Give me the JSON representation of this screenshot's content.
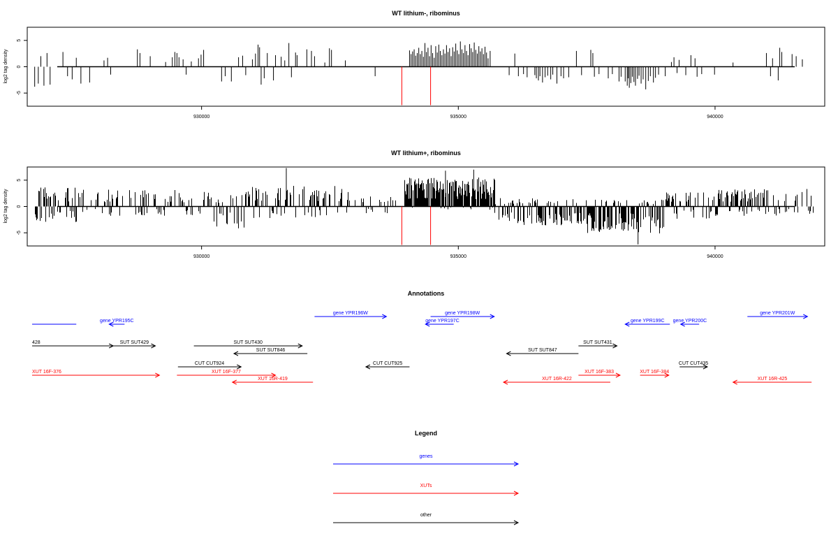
{
  "chart_data": [
    {
      "type": "bar",
      "title": "WT lithium-, ribominus",
      "ylabel": "log2 tag density",
      "xlabel": "",
      "xlim": [
        926700,
        942000
      ],
      "ylim": [
        -7.5,
        7.5
      ],
      "yticks": [
        "-5",
        "0",
        "5"
      ],
      "xticks": [
        "930000",
        "935000",
        "940000"
      ],
      "baseline": 0,
      "bars": [
        [
          926750,
          -3.8
        ],
        [
          926820,
          -3.2
        ],
        [
          926870,
          2.0
        ],
        [
          926930,
          -3.6
        ],
        [
          926990,
          2.6
        ],
        [
          927050,
          -3.4
        ],
        [
          927300,
          2.8
        ],
        [
          927390,
          -1.8
        ],
        [
          927480,
          -2.4
        ],
        [
          927560,
          1.7
        ],
        [
          927650,
          -3.2
        ],
        [
          927820,
          -3.0
        ],
        [
          928100,
          1.2
        ],
        [
          928170,
          1.7
        ],
        [
          928230,
          -1.5
        ],
        [
          928750,
          3.3
        ],
        [
          928800,
          2.6
        ],
        [
          929000,
          2.0
        ],
        [
          929300,
          0.9
        ],
        [
          929430,
          1.8
        ],
        [
          929480,
          2.8
        ],
        [
          929520,
          2.6
        ],
        [
          929560,
          1.8
        ],
        [
          929640,
          1.4
        ],
        [
          929700,
          -1.5
        ],
        [
          929800,
          1.0
        ],
        [
          929940,
          1.6
        ],
        [
          929990,
          2.3
        ],
        [
          930040,
          3.2
        ],
        [
          930390,
          -2.8
        ],
        [
          930460,
          -1.8
        ],
        [
          930580,
          -2.8
        ],
        [
          930720,
          1.8
        ],
        [
          930800,
          2.1
        ],
        [
          930860,
          -1.6
        ],
        [
          930990,
          1.4
        ],
        [
          931050,
          2.5
        ],
        [
          931100,
          4.2
        ],
        [
          931130,
          3.7
        ],
        [
          931160,
          -3.4
        ],
        [
          931220,
          -2.2
        ],
        [
          931280,
          2.6
        ],
        [
          931400,
          -2.6
        ],
        [
          931440,
          2.2
        ],
        [
          931550,
          1.9
        ],
        [
          931620,
          1.2
        ],
        [
          931700,
          4.5
        ],
        [
          931750,
          -2.0
        ],
        [
          931830,
          2.7
        ],
        [
          931860,
          2.2
        ],
        [
          932050,
          3.3
        ],
        [
          932140,
          3.0
        ],
        [
          932200,
          2.0
        ],
        [
          932400,
          0.8
        ],
        [
          932490,
          3.5
        ],
        [
          932530,
          3.2
        ],
        [
          932800,
          1.2
        ],
        [
          933380,
          -1.8
        ],
        [
          934050,
          3.1
        ],
        [
          934080,
          2.4
        ],
        [
          934110,
          2.9
        ],
        [
          934140,
          3.3
        ],
        [
          934170,
          2.1
        ],
        [
          934200,
          2.6
        ],
        [
          934230,
          3.6
        ],
        [
          934260,
          2.4
        ],
        [
          934290,
          3.0
        ],
        [
          934320,
          1.9
        ],
        [
          934350,
          4.5
        ],
        [
          934380,
          2.8
        ],
        [
          934410,
          3.6
        ],
        [
          934440,
          2.0
        ],
        [
          934470,
          4.1
        ],
        [
          934500,
          2.6
        ],
        [
          934530,
          1.7
        ],
        [
          934560,
          3.9
        ],
        [
          934590,
          2.7
        ],
        [
          934620,
          4.2
        ],
        [
          934650,
          3.0
        ],
        [
          934680,
          2.2
        ],
        [
          934710,
          3.3
        ],
        [
          934740,
          2.5
        ],
        [
          934770,
          4.1
        ],
        [
          934800,
          2.8
        ],
        [
          934830,
          3.5
        ],
        [
          934860,
          2.0
        ],
        [
          934890,
          3.7
        ],
        [
          934920,
          2.9
        ],
        [
          934950,
          4.4
        ],
        [
          934980,
          3.1
        ],
        [
          935010,
          2.4
        ],
        [
          935040,
          4.8
        ],
        [
          935070,
          3.3
        ],
        [
          935100,
          2.6
        ],
        [
          935130,
          4.1
        ],
        [
          935160,
          3.0
        ],
        [
          935190,
          2.2
        ],
        [
          935220,
          4.3
        ],
        [
          935250,
          3.5
        ],
        [
          935280,
          2.8
        ],
        [
          935310,
          4.6
        ],
        [
          935340,
          3.2
        ],
        [
          935370,
          2.5
        ],
        [
          935400,
          3.9
        ],
        [
          935430,
          2.9
        ],
        [
          935460,
          3.5
        ],
        [
          935490,
          2.4
        ],
        [
          935520,
          3.8
        ],
        [
          935550,
          2.7
        ],
        [
          935580,
          1.6
        ],
        [
          935620,
          3.0
        ],
        [
          935990,
          -1.6
        ],
        [
          936100,
          2.5
        ],
        [
          936170,
          -1.8
        ],
        [
          936270,
          -1.4
        ],
        [
          936340,
          -2.0
        ],
        [
          936490,
          -1.6
        ],
        [
          936520,
          -2.2
        ],
        [
          936560,
          -2.6
        ],
        [
          936590,
          -1.8
        ],
        [
          936640,
          -3.0
        ],
        [
          936690,
          -2.0
        ],
        [
          936740,
          -1.7
        ],
        [
          936800,
          -2.4
        ],
        [
          936840,
          -1.5
        ],
        [
          936920,
          -3.2
        ],
        [
          937000,
          -1.8
        ],
        [
          937050,
          -2.2
        ],
        [
          937150,
          -2.0
        ],
        [
          937300,
          3.0
        ],
        [
          937400,
          -1.6
        ],
        [
          937580,
          3.2
        ],
        [
          937620,
          2.6
        ],
        [
          937650,
          -1.9
        ],
        [
          937740,
          -1.4
        ],
        [
          937920,
          -2.2
        ],
        [
          938000,
          -1.4
        ],
        [
          938130,
          -2.8
        ],
        [
          938170,
          -1.9
        ],
        [
          938250,
          -2.8
        ],
        [
          938290,
          -3.6
        ],
        [
          938310,
          -2.2
        ],
        [
          938330,
          -4.0
        ],
        [
          938360,
          -3.1
        ],
        [
          938390,
          -1.9
        ],
        [
          938420,
          -2.9
        ],
        [
          938450,
          -3.6
        ],
        [
          938490,
          -2.3
        ],
        [
          938520,
          -1.7
        ],
        [
          938560,
          -3.2
        ],
        [
          938600,
          -2.4
        ],
        [
          938650,
          -4.3
        ],
        [
          938700,
          -2.7
        ],
        [
          938740,
          -1.8
        ],
        [
          938800,
          -3.0
        ],
        [
          938840,
          -2.1
        ],
        [
          938900,
          -1.5
        ],
        [
          939030,
          -1.8
        ],
        [
          939150,
          0.9
        ],
        [
          939200,
          1.8
        ],
        [
          939260,
          -1.2
        ],
        [
          939300,
          1.3
        ],
        [
          939430,
          -1.6
        ],
        [
          939530,
          2.2
        ],
        [
          939610,
          1.6
        ],
        [
          939650,
          -1.9
        ],
        [
          939740,
          -1.4
        ],
        [
          939990,
          -1.5
        ],
        [
          940350,
          0.8
        ],
        [
          941000,
          2.6
        ],
        [
          941080,
          -1.8
        ],
        [
          941120,
          1.6
        ],
        [
          941230,
          -2.6
        ],
        [
          941260,
          3.6
        ],
        [
          941300,
          2.8
        ],
        [
          941500,
          2.4
        ],
        [
          941580,
          2.0
        ],
        [
          941700,
          1.4
        ]
      ],
      "red_markers": [
        933900,
        934460
      ]
    },
    {
      "type": "bar",
      "title": "WT lithium+, ribominus",
      "ylabel": "log2 tag density",
      "xlabel": "",
      "xlim": [
        926700,
        942000
      ],
      "ylim": [
        -7.5,
        7.5
      ],
      "yticks": [
        "-5",
        "0",
        "5"
      ],
      "xticks": [
        "930000",
        "935000",
        "940000"
      ],
      "baseline": 0,
      "noise_profile": [
        {
          "from": 926750,
          "to": 927600,
          "density": 0.75,
          "pos": 3.8,
          "neg": 3.2
        },
        {
          "from": 927600,
          "to": 930150,
          "density": 0.45,
          "pos": 3.2,
          "neg": 1.8
        },
        {
          "from": 930150,
          "to": 930850,
          "density": 0.55,
          "pos": 2.4,
          "neg": 4.2
        },
        {
          "from": 930850,
          "to": 932900,
          "density": 0.5,
          "pos": 4.0,
          "neg": 2.2
        },
        {
          "from": 932900,
          "to": 933950,
          "density": 0.25,
          "pos": 2.0,
          "neg": 1.4
        },
        {
          "from": 933950,
          "to": 935700,
          "density": 0.95,
          "pos": 5.5,
          "neg": 0.6
        },
        {
          "from": 935700,
          "to": 937500,
          "density": 0.65,
          "pos": 1.6,
          "neg": 3.6
        },
        {
          "from": 937500,
          "to": 939000,
          "density": 0.8,
          "pos": 1.4,
          "neg": 5.2
        },
        {
          "from": 939000,
          "to": 940000,
          "density": 0.5,
          "pos": 3.0,
          "neg": 2.4
        },
        {
          "from": 940000,
          "to": 941900,
          "density": 0.6,
          "pos": 3.6,
          "neg": 1.8
        }
      ],
      "red_markers": [
        933900,
        934460
      ]
    }
  ],
  "annotations": {
    "title": "Annotations",
    "xlim": [
      926700,
      942000
    ],
    "features": [
      {
        "label": "",
        "start": 926700,
        "end": 927560,
        "row": 0,
        "dir": "none",
        "color": "#0000ff",
        "label_side": "center"
      },
      {
        "label": "gene YPR195C",
        "start": 928500,
        "end": 928200,
        "row": 0,
        "dir": "left",
        "color": "#0000ff",
        "label_side": "center"
      },
      {
        "label": "gene YPR196W",
        "start": 932200,
        "end": 933600,
        "row": 1,
        "dir": "right",
        "color": "#0000ff",
        "label_side": "center"
      },
      {
        "label": "gene YPR197C",
        "start": 934910,
        "end": 934360,
        "row": 0,
        "dir": "left",
        "color": "#0000ff",
        "label_side": "left"
      },
      {
        "label": "gene YPR198W",
        "start": 934460,
        "end": 935700,
        "row": 1,
        "dir": "right",
        "color": "#0000ff",
        "label_side": "center"
      },
      {
        "label": "gene YPR199C",
        "start": 939120,
        "end": 938250,
        "row": 0,
        "dir": "left",
        "color": "#0000ff",
        "label_side": "center"
      },
      {
        "label": "gene YPR200C",
        "start": 939690,
        "end": 939330,
        "row": 0,
        "dir": "left",
        "color": "#0000ff",
        "label_side": "center"
      },
      {
        "label": "gene YPR201W",
        "start": 940630,
        "end": 941800,
        "row": 1,
        "dir": "right",
        "color": "#0000ff",
        "label_side": "center"
      },
      {
        "label": "428",
        "start": 926700,
        "end": 928280,
        "row": 2,
        "dir": "right",
        "color": "#000000",
        "label_side": "left"
      },
      {
        "label": "SUT SUT429",
        "start": 928280,
        "end": 929100,
        "row": 2,
        "dir": "right",
        "color": "#000000",
        "label_side": "center"
      },
      {
        "label": "SUT SUT430",
        "start": 929850,
        "end": 931960,
        "row": 2,
        "dir": "right",
        "color": "#000000",
        "label_side": "center"
      },
      {
        "label": "SUT SUT846",
        "start": 932060,
        "end": 930630,
        "row": 3,
        "dir": "left",
        "color": "#000000",
        "label_side": "center"
      },
      {
        "label": "CUT CUT924",
        "start": 929540,
        "end": 930770,
        "row": 4,
        "dir": "right",
        "color": "#000000",
        "label_side": "center"
      },
      {
        "label": "CUT CUT925",
        "start": 934050,
        "end": 933200,
        "row": 4,
        "dir": "left",
        "color": "#000000",
        "label_side": "center"
      },
      {
        "label": "SUT SUT847",
        "start": 937340,
        "end": 935940,
        "row": 3,
        "dir": "left",
        "color": "#000000",
        "label_side": "center"
      },
      {
        "label": "SUT SUT431",
        "start": 937340,
        "end": 938090,
        "row": 2,
        "dir": "right",
        "color": "#000000",
        "label_side": "center"
      },
      {
        "label": "CUT CUT435",
        "start": 939310,
        "end": 939850,
        "row": 4,
        "dir": "right",
        "color": "#000000",
        "label_side": "center"
      },
      {
        "label": "XUT 16F-376",
        "start": 926700,
        "end": 929180,
        "row": 5,
        "dir": "right",
        "color": "#ff0000",
        "label_side": "left"
      },
      {
        "label": "XUT 16F-377",
        "start": 929520,
        "end": 931440,
        "row": 5,
        "dir": "right",
        "color": "#ff0000",
        "label_side": "center"
      },
      {
        "label": "XUT 16R-419",
        "start": 932170,
        "end": 930600,
        "row": 6,
        "dir": "left",
        "color": "#ff0000",
        "label_side": "center"
      },
      {
        "label": "XUT 16R-422",
        "start": 937960,
        "end": 935880,
        "row": 6,
        "dir": "left",
        "color": "#ff0000",
        "label_side": "center"
      },
      {
        "label": "XUT 16F-383",
        "start": 937340,
        "end": 938150,
        "row": 5,
        "dir": "right",
        "color": "#ff0000",
        "label_side": "center"
      },
      {
        "label": "XUT 16F-384",
        "start": 938540,
        "end": 939100,
        "row": 5,
        "dir": "right",
        "color": "#ff0000",
        "label_side": "center"
      },
      {
        "label": "XUT 16R-425",
        "start": 941880,
        "end": 940350,
        "row": 6,
        "dir": "left",
        "color": "#ff0000",
        "label_side": "center"
      }
    ]
  },
  "legend": {
    "title": "Legend",
    "items": [
      {
        "label": "genes",
        "color": "#0000ff"
      },
      {
        "label": "XUTs",
        "color": "#ff0000"
      },
      {
        "label": "other",
        "color": "#000000"
      }
    ]
  }
}
